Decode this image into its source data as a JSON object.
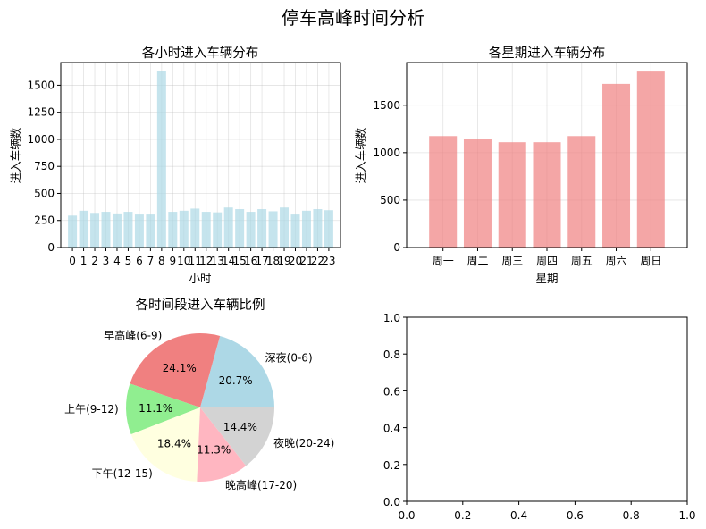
{
  "figure": {
    "title": "停车高峰时间分析"
  },
  "chart_data": [
    {
      "type": "bar",
      "title": "各小时进入车辆分布",
      "xlabel": "小时",
      "ylabel": "进入车辆数",
      "categories": [
        "0",
        "1",
        "2",
        "3",
        "4",
        "5",
        "6",
        "7",
        "8",
        "9",
        "10",
        "11",
        "12",
        "13",
        "14",
        "15",
        "16",
        "17",
        "18",
        "19",
        "20",
        "21",
        "22",
        "23"
      ],
      "values": [
        295,
        340,
        320,
        330,
        315,
        330,
        305,
        305,
        1630,
        330,
        340,
        360,
        330,
        325,
        370,
        355,
        330,
        355,
        335,
        370,
        305,
        340,
        355,
        345
      ],
      "ylim": [
        0,
        1710
      ],
      "yticks": [
        0,
        250,
        500,
        750,
        1000,
        1250,
        1500
      ],
      "color": "#add8e6",
      "grid": true
    },
    {
      "type": "bar",
      "title": "各星期进入车辆分布",
      "xlabel": "星期",
      "ylabel": "进入车辆数",
      "categories": [
        "周一",
        "周二",
        "周三",
        "周四",
        "周五",
        "周六",
        "周日"
      ],
      "values": [
        1175,
        1140,
        1110,
        1110,
        1175,
        1725,
        1855
      ],
      "ylim": [
        0,
        1950
      ],
      "yticks": [
        0,
        500,
        1000,
        1500
      ],
      "color": "#f08080",
      "grid": true
    },
    {
      "type": "pie",
      "title": "各时间段进入车辆比例",
      "slices": [
        {
          "label": "深夜(0-6)",
          "value": 20.7,
          "pct": "20.7%",
          "color": "#add8e6"
        },
        {
          "label": "早高峰(6-9)",
          "value": 24.1,
          "pct": "24.1%",
          "color": "#f08080"
        },
        {
          "label": "上午(9-12)",
          "value": 11.1,
          "pct": "11.1%",
          "color": "#90ee90"
        },
        {
          "label": "下午(12-15)",
          "value": 18.4,
          "pct": "18.4%",
          "color": "#ffffe0"
        },
        {
          "label": "晚高峰(17-20)",
          "value": 11.3,
          "pct": "11.3%",
          "color": "#ffb6c1"
        },
        {
          "label": "夜晚(20-24)",
          "value": 14.4,
          "pct": "14.4%",
          "color": "#d3d3d3"
        }
      ]
    },
    {
      "type": "line",
      "empty": true,
      "xlim": [
        0,
        1
      ],
      "ylim": [
        0,
        1
      ],
      "xticks": [
        "0.0",
        "0.2",
        "0.4",
        "0.6",
        "0.8",
        "1.0"
      ],
      "yticks": [
        "0.0",
        "0.2",
        "0.4",
        "0.6",
        "0.8",
        "1.0"
      ]
    }
  ]
}
